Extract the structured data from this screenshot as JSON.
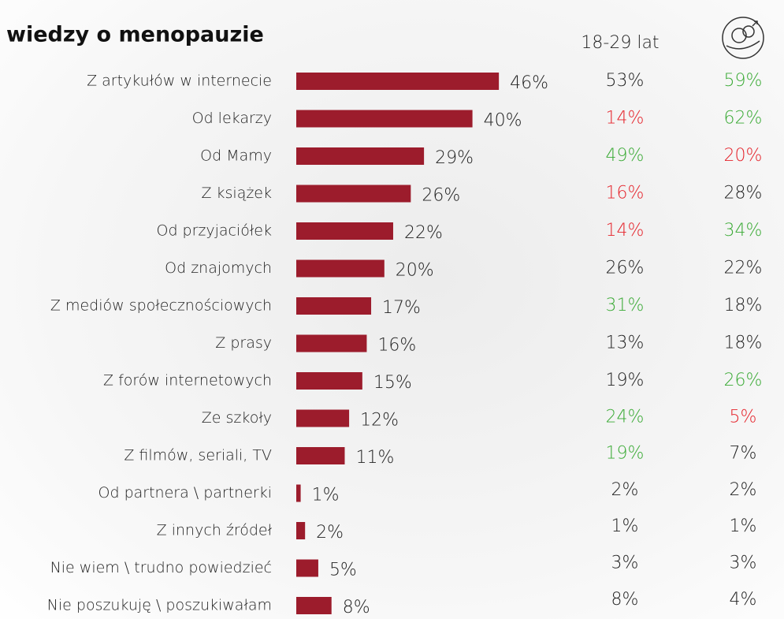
{
  "chart_data": {
    "type": "bar",
    "orientation": "horizontal",
    "title": "wiedzy o menopauzie",
    "categories": [
      "Z artykułów w internecie",
      "Od lekarzy",
      "Od Mamy",
      "Z książek",
      "Od przyjaciółek",
      "Od znajomych",
      "Z mediów społecznościowych",
      "Z prasy",
      "Z forów internetowych",
      "Ze szkoły",
      "Z filmów, seriali, TV",
      "Od partnera \\ partnerki",
      "Z innych źródeł",
      "Nie wiem \\ trudno powiedzieć",
      "Nie poszukuję \\ poszukiwałam"
    ],
    "values": [
      46,
      40,
      29,
      26,
      22,
      20,
      17,
      16,
      15,
      12,
      11,
      1,
      2,
      5,
      8
    ],
    "value_labels": [
      "46%",
      "40%",
      "29%",
      "26%",
      "22%",
      "20%",
      "17%",
      "16%",
      "15%",
      "12%",
      "11%",
      "1%",
      "2%",
      "5%",
      "8%"
    ],
    "color": "#9c1c2c",
    "columns": [
      {
        "name": "18-29 lat",
        "values": [
          53,
          14,
          49,
          16,
          14,
          26,
          31,
          13,
          19,
          24,
          19,
          2,
          1,
          3,
          8
        ],
        "value_labels": [
          "53%",
          "14%",
          "49%",
          "16%",
          "14%",
          "26%",
          "31%",
          "13%",
          "19%",
          "24%",
          "19%",
          "2%",
          "1%",
          "3%",
          "8%"
        ],
        "colors": [
          "#222222",
          "#e5232b",
          "#3aaa35",
          "#e5232b",
          "#e5232b",
          "#222222",
          "#3aaa35",
          "#222222",
          "#222222",
          "#3aaa35",
          "#3aaa35",
          "#222222",
          "#222222",
          "#222222",
          "#222222"
        ]
      },
      {
        "values": [
          59,
          62,
          20,
          28,
          34,
          22,
          18,
          18,
          26,
          5,
          7,
          2,
          1,
          3,
          4
        ],
        "value_labels": [
          "59%",
          "62%",
          "20%",
          "28%",
          "34%",
          "22%",
          "18%",
          "18%",
          "26%",
          "5%",
          "7%",
          "2%",
          "1%",
          "3%",
          "4%"
        ],
        "colors": [
          "#3aaa35",
          "#3aaa35",
          "#e5232b",
          "#222222",
          "#3aaa35",
          "#222222",
          "#222222",
          "#222222",
          "#3aaa35",
          "#e5232b",
          "#222222",
          "#222222",
          "#222222",
          "#222222",
          "#222222"
        ]
      }
    ]
  }
}
